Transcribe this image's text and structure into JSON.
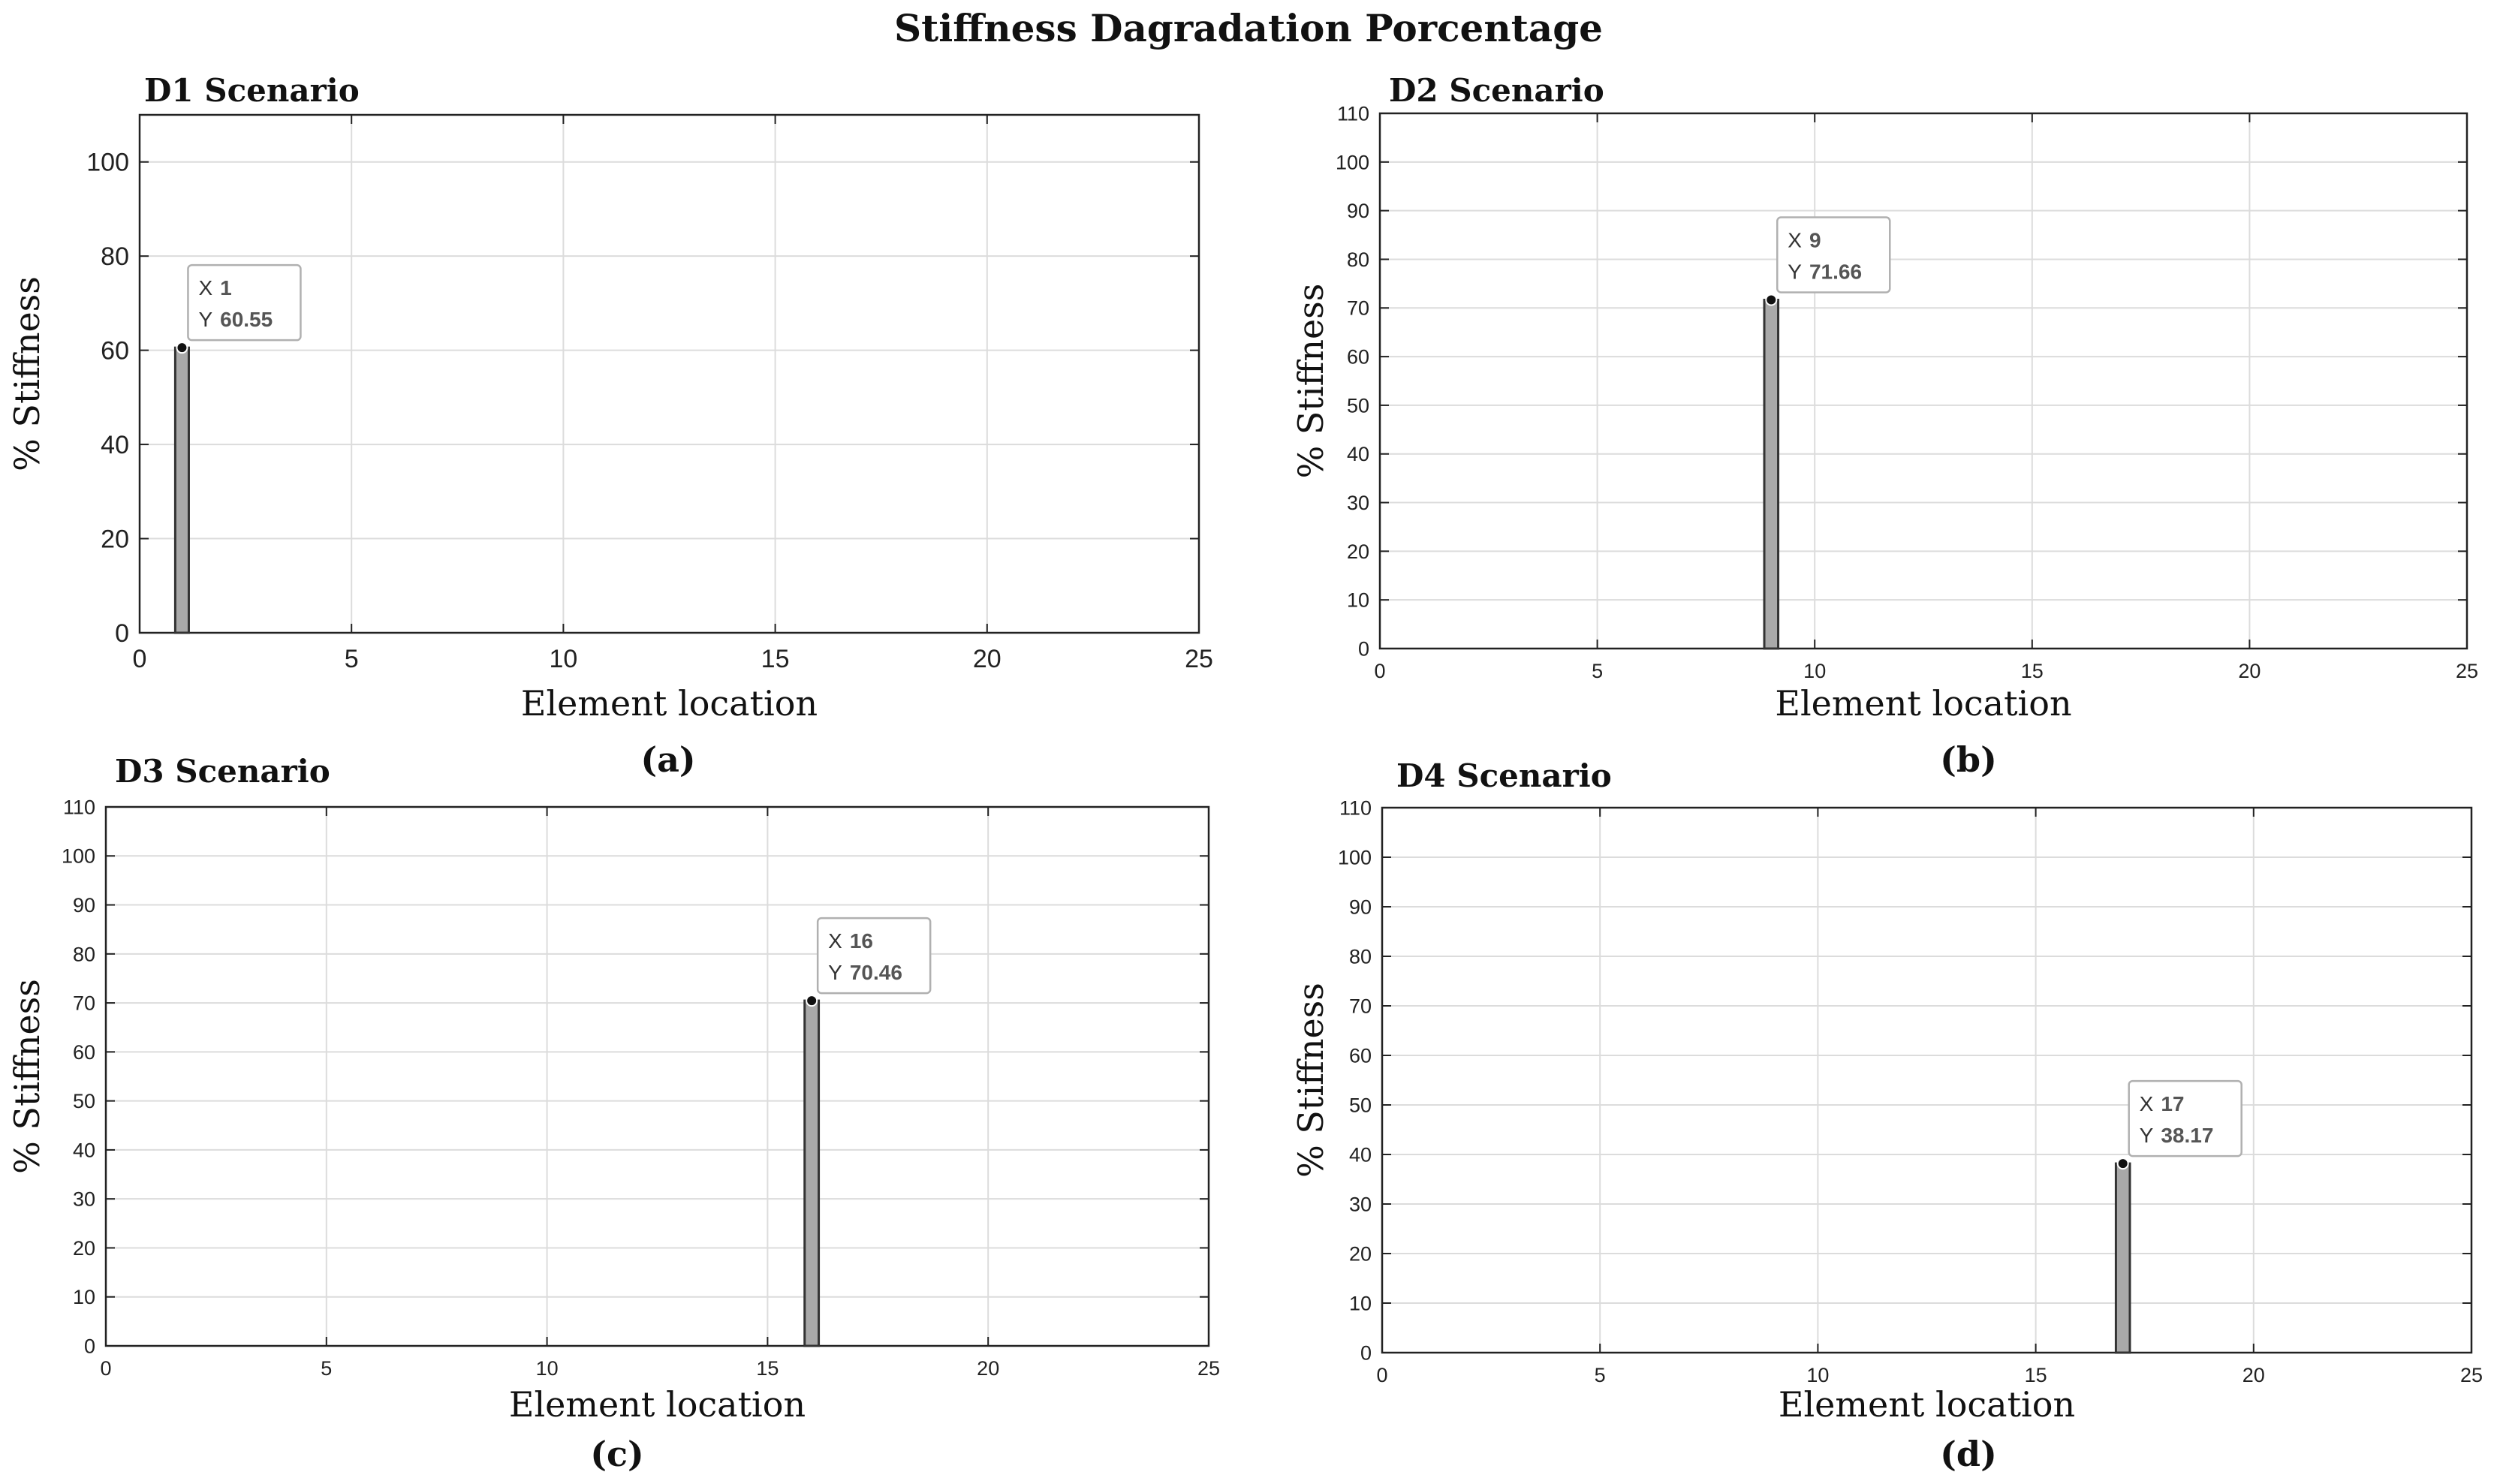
{
  "figure_title": "Stiffness Dagradation Porcentage",
  "colors": {
    "bar_fill": "#a9a9a9",
    "bar_stroke": "#333333",
    "grid": "#dcdcdc",
    "axis": "#222222",
    "tip_border": "#b0b0b0"
  },
  "chart_data": [
    {
      "type": "bar",
      "panel": "a",
      "title": "D1 Scenario",
      "caption": "(a)",
      "xlabel": "Element location",
      "ylabel": "% Stiffness",
      "xlim": [
        0,
        25
      ],
      "ylim": [
        0,
        110
      ],
      "xticks": [
        "0",
        "5",
        "10",
        "15",
        "20",
        "25"
      ],
      "yticks": [
        "0",
        "20",
        "40",
        "60",
        "80",
        "100"
      ],
      "x": [
        1
      ],
      "values": [
        60.55
      ],
      "datatip": {
        "x_label": "X",
        "x_value": "1",
        "y_label": "Y",
        "y_value": "60.55"
      },
      "grid": true
    },
    {
      "type": "bar",
      "panel": "b",
      "title": "D2 Scenario",
      "caption": "(b)",
      "xlabel": "Element location",
      "ylabel": "% Stiffness",
      "xlim": [
        0,
        25
      ],
      "ylim": [
        0,
        110
      ],
      "xticks": [
        "0",
        "5",
        "10",
        "15",
        "20",
        "25"
      ],
      "yticks": [
        "0",
        "10",
        "20",
        "30",
        "40",
        "50",
        "60",
        "70",
        "80",
        "90",
        "100",
        "110"
      ],
      "x": [
        9
      ],
      "values": [
        71.66
      ],
      "datatip": {
        "x_label": "X",
        "x_value": "9",
        "y_label": "Y",
        "y_value": "71.66"
      },
      "grid": true
    },
    {
      "type": "bar",
      "panel": "c",
      "title": "D3 Scenario",
      "caption": "(c)",
      "xlabel": "Element location",
      "ylabel": "% Stiffness",
      "xlim": [
        0,
        25
      ],
      "ylim": [
        0,
        110
      ],
      "xticks": [
        "0",
        "5",
        "10",
        "15",
        "20",
        "25"
      ],
      "yticks": [
        "0",
        "10",
        "20",
        "30",
        "40",
        "50",
        "60",
        "70",
        "80",
        "90",
        "100",
        "110"
      ],
      "x": [
        16
      ],
      "values": [
        70.46
      ],
      "datatip": {
        "x_label": "X",
        "x_value": "16",
        "y_label": "Y",
        "y_value": "70.46"
      },
      "grid": true
    },
    {
      "type": "bar",
      "panel": "d",
      "title": "D4 Scenario",
      "caption": "(d)",
      "xlabel": "Element location",
      "ylabel": "% Stiffness",
      "xlim": [
        0,
        25
      ],
      "ylim": [
        0,
        110
      ],
      "xticks": [
        "0",
        "5",
        "10",
        "15",
        "20",
        "25"
      ],
      "yticks": [
        "0",
        "10",
        "20",
        "30",
        "40",
        "50",
        "60",
        "70",
        "80",
        "90",
        "100",
        "110"
      ],
      "x": [
        17
      ],
      "values": [
        38.17
      ],
      "datatip": {
        "x_label": "X",
        "x_value": "17",
        "y_label": "Y",
        "y_value": "38.17"
      },
      "grid": true
    }
  ]
}
